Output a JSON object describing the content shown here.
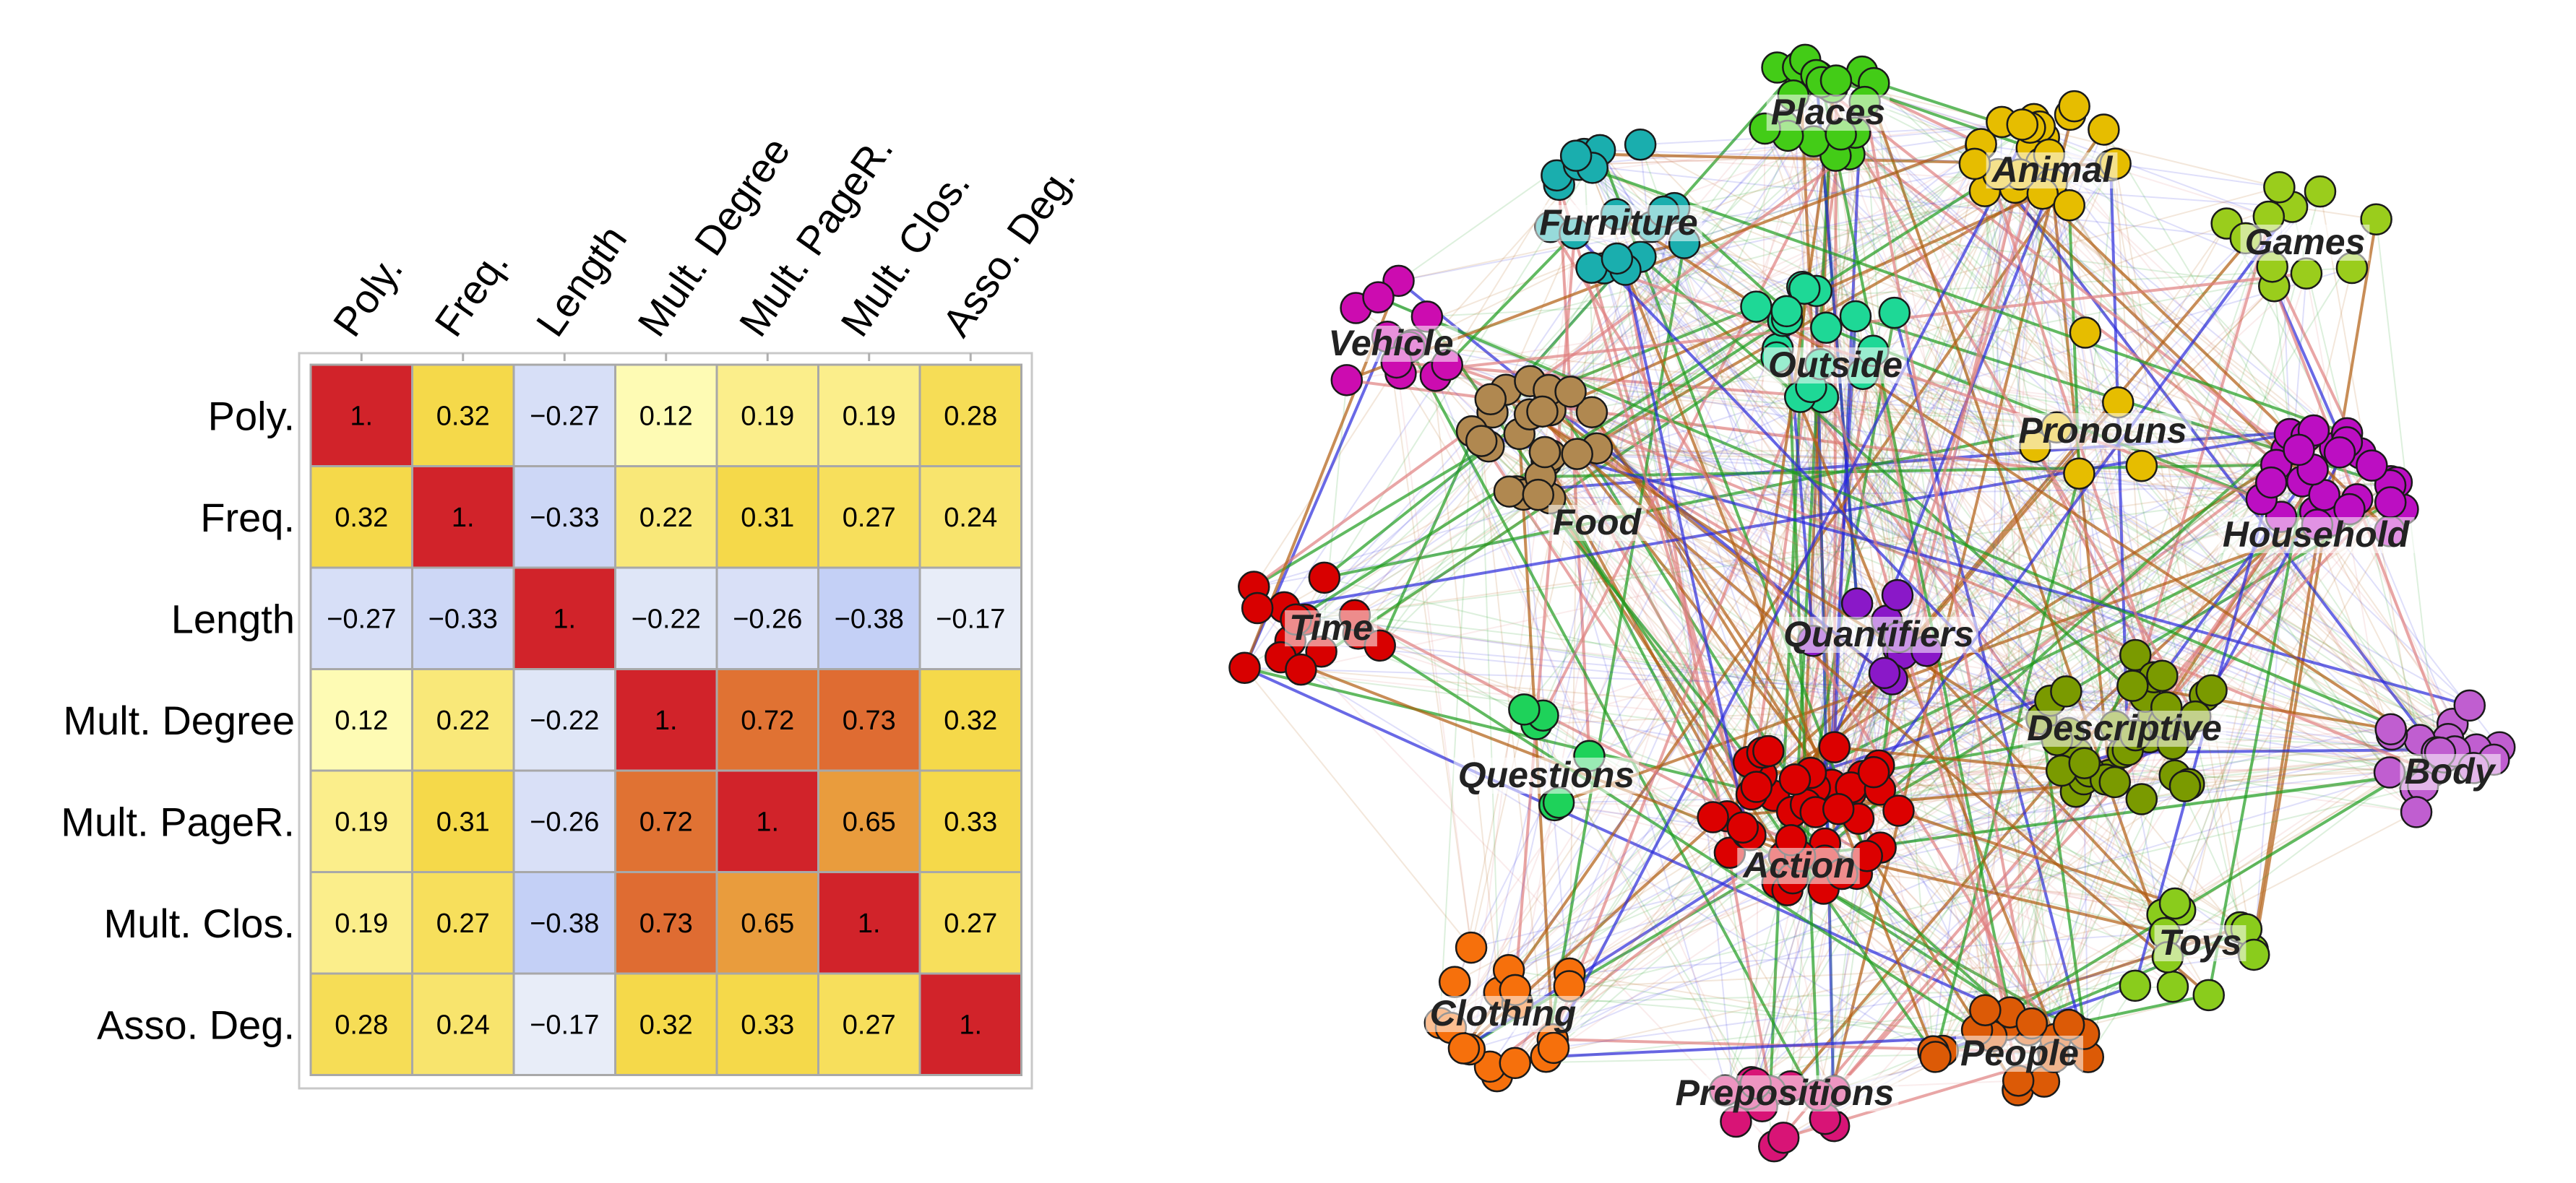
{
  "chart_data": [
    {
      "type": "heatmap",
      "title": "",
      "row_labels": [
        "Poly.",
        "Freq.",
        "Length",
        "Mult. Degree",
        "Mult. PageR.",
        "Mult. Clos.",
        "Asso. Deg."
      ],
      "column_labels": [
        "Poly.",
        "Freq.",
        "Length",
        "Mult. Degree",
        "Mult. PageR.",
        "Mult. Clos.",
        "Asso. Deg."
      ],
      "values": [
        [
          1,
          0.32,
          -0.27,
          0.12,
          0.19,
          0.19,
          0.28
        ],
        [
          0.32,
          1,
          -0.33,
          0.22,
          0.31,
          0.27,
          0.24
        ],
        [
          -0.27,
          -0.33,
          1,
          -0.22,
          -0.26,
          -0.38,
          -0.17
        ],
        [
          0.12,
          0.22,
          -0.22,
          1,
          0.72,
          0.73,
          0.32
        ],
        [
          0.19,
          0.31,
          -0.26,
          0.72,
          1,
          0.65,
          0.33
        ],
        [
          0.19,
          0.27,
          -0.38,
          0.73,
          0.65,
          1,
          0.27
        ],
        [
          0.28,
          0.24,
          -0.17,
          0.32,
          0.33,
          0.27,
          1
        ]
      ],
      "cell_text": [
        [
          "1.",
          "0.32",
          "−0.27",
          "0.12",
          "0.19",
          "0.19",
          "0.28"
        ],
        [
          "0.32",
          "1.",
          "−0.33",
          "0.22",
          "0.31",
          "0.27",
          "0.24"
        ],
        [
          "−0.27",
          "−0.33",
          "1.",
          "−0.22",
          "−0.26",
          "−0.38",
          "−0.17"
        ],
        [
          "0.12",
          "0.22",
          "−0.22",
          "1.",
          "0.72",
          "0.73",
          "0.32"
        ],
        [
          "0.19",
          "0.31",
          "−0.26",
          "0.72",
          "1.",
          "0.65",
          "0.33"
        ],
        [
          "0.19",
          "0.27",
          "−0.38",
          "0.73",
          "0.65",
          "1.",
          "0.27"
        ],
        [
          "0.28",
          "0.24",
          "−0.17",
          "0.32",
          "0.33",
          "0.27",
          "1."
        ]
      ],
      "color_scale": {
        "negative": "#c4d0f6",
        "neutral": "#f4f6f8",
        "low": "#ffffc0",
        "mid": "#f5d94a",
        "high": "#df6c32",
        "max": "#d1232a"
      }
    },
    {
      "type": "network",
      "title": "",
      "clusters": [
        {
          "name": "Places",
          "color": "#43cc17",
          "nodes": 22
        },
        {
          "name": "Animal",
          "color": "#e6bd00",
          "nodes": 24
        },
        {
          "name": "Furniture",
          "color": "#1aaeae",
          "nodes": 20
        },
        {
          "name": "Games",
          "color": "#9acd1c",
          "nodes": 11
        },
        {
          "name": "Vehicle",
          "color": "#cc0cb0",
          "nodes": 12
        },
        {
          "name": "Outside",
          "color": "#1ed896",
          "nodes": 18
        },
        {
          "name": "Pronouns",
          "color": "#e6bd00",
          "nodes": 6
        },
        {
          "name": "Food",
          "color": "#b08850",
          "nodes": 26
        },
        {
          "name": "Household",
          "color": "#bc0ec2",
          "nodes": 30
        },
        {
          "name": "Time",
          "color": "#d80000",
          "nodes": 14
        },
        {
          "name": "Quantifiers",
          "color": "#8a18c8",
          "nodes": 10
        },
        {
          "name": "Descriptive",
          "color": "#7a9a00",
          "nodes": 36
        },
        {
          "name": "Questions",
          "color": "#1ed25a",
          "nodes": 6
        },
        {
          "name": "Body",
          "color": "#c05ed0",
          "nodes": 20
        },
        {
          "name": "Action",
          "color": "#dc0000",
          "nodes": 44
        },
        {
          "name": "Toys",
          "color": "#8acc1c",
          "nodes": 12
        },
        {
          "name": "Clothing",
          "color": "#f6700c",
          "nodes": 18
        },
        {
          "name": "People",
          "color": "#dc5a06",
          "nodes": 20
        },
        {
          "name": "Prepositions",
          "color": "#d81476",
          "nodes": 14
        }
      ],
      "edge_colors": [
        "#b05c10",
        "#2a2adc",
        "#1e9c1e",
        "#e08080"
      ]
    }
  ]
}
